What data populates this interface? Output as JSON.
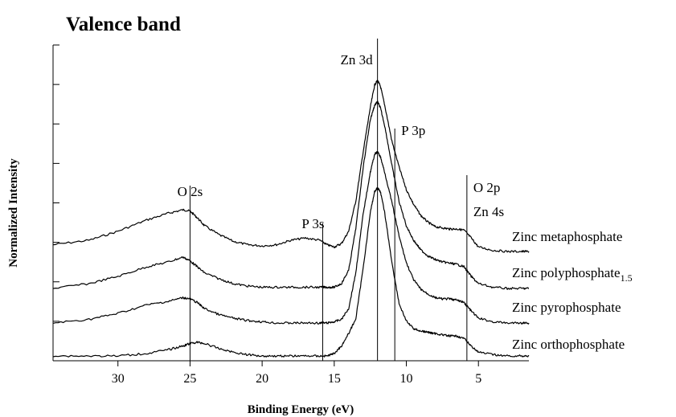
{
  "chart_data": {
    "type": "line",
    "title": "Valence band",
    "xlabel": "Binding Energy (eV)",
    "ylabel": "Normalized Intensity",
    "x_reversed": true,
    "xlim": [
      34.5,
      1.5
    ],
    "xticks": [
      "30",
      "25",
      "20",
      "15",
      "10",
      "5"
    ],
    "y_ticks_count": 9,
    "annotations": [
      {
        "label": "O 2s",
        "x": 25
      },
      {
        "label": "P 3s",
        "x": 15.8
      },
      {
        "label": "Zn 3d",
        "x": 12
      },
      {
        "label": "P 3p",
        "x": 10.8
      },
      {
        "label": "O 2p",
        "x": 5.8
      },
      {
        "label": "Zn 4s",
        "x": 5.8
      }
    ],
    "series": [
      {
        "name": "Zinc metaphosphate",
        "label_sub": "",
        "x": [
          34.5,
          32,
          30,
          28,
          26.5,
          25.5,
          25,
          24.5,
          24,
          23,
          22,
          21,
          20,
          19,
          18,
          17,
          16,
          15.5,
          15,
          14.5,
          14,
          13.5,
          13,
          12.5,
          12.2,
          12,
          11.8,
          11.5,
          11,
          10.5,
          10,
          9.5,
          9,
          8.5,
          8,
          7.5,
          7,
          6.5,
          6,
          5.5,
          5,
          4,
          3,
          2,
          1.5
        ],
        "y": [
          0.06,
          0.1,
          0.18,
          0.28,
          0.34,
          0.37,
          0.36,
          0.3,
          0.23,
          0.15,
          0.09,
          0.06,
          0.05,
          0.06,
          0.1,
          0.12,
          0.1,
          0.06,
          0.04,
          0.07,
          0.18,
          0.45,
          0.88,
          1.28,
          1.48,
          1.52,
          1.47,
          1.3,
          0.98,
          0.75,
          0.55,
          0.42,
          0.32,
          0.26,
          0.22,
          0.21,
          0.2,
          0.2,
          0.19,
          0.12,
          0.04,
          0.01,
          0.0,
          0.0,
          0.0
        ]
      },
      {
        "name": "Zinc polyphosphate",
        "label_sub": "1.5",
        "x": [
          34.5,
          32,
          30,
          28,
          26.5,
          25.5,
          25,
          24.5,
          24,
          23,
          22,
          21,
          20,
          19,
          18,
          17,
          16,
          15.5,
          15,
          14.5,
          14,
          13.5,
          13,
          12.5,
          12.2,
          12,
          11.8,
          11.5,
          11,
          10.5,
          10,
          9.5,
          9,
          8.5,
          8,
          7.5,
          7,
          6.5,
          6,
          5.5,
          5,
          4,
          3,
          2,
          1.5
        ],
        "y": [
          0.0,
          0.04,
          0.1,
          0.18,
          0.22,
          0.26,
          0.23,
          0.18,
          0.13,
          0.08,
          0.04,
          0.02,
          0.01,
          0.01,
          0.01,
          0.01,
          0.01,
          0.01,
          0.01,
          0.04,
          0.15,
          0.5,
          1.0,
          1.4,
          1.52,
          1.55,
          1.5,
          1.35,
          1.02,
          0.72,
          0.52,
          0.4,
          0.32,
          0.27,
          0.24,
          0.22,
          0.21,
          0.2,
          0.18,
          0.1,
          0.04,
          0.01,
          0.0,
          0.0,
          0.0
        ]
      },
      {
        "name": "Zinc pyrophosphate",
        "label_sub": "",
        "x": [
          34.5,
          32,
          30,
          28,
          26.5,
          25.5,
          25,
          24.5,
          24,
          23,
          22,
          21,
          20,
          19,
          18,
          17,
          16,
          15.5,
          15,
          14.5,
          14,
          13.5,
          13,
          12.5,
          12.2,
          12,
          11.8,
          11.5,
          11,
          10.5,
          10,
          9.5,
          9,
          8.5,
          8,
          7.5,
          7,
          6.5,
          6,
          5.5,
          5,
          4,
          3,
          2,
          1.5
        ],
        "y": [
          0.0,
          0.03,
          0.08,
          0.15,
          0.18,
          0.21,
          0.2,
          0.17,
          0.12,
          0.07,
          0.04,
          0.02,
          0.01,
          0.0,
          0.0,
          0.0,
          0.0,
          0.0,
          0.01,
          0.03,
          0.12,
          0.42,
          0.9,
          1.25,
          1.4,
          1.42,
          1.38,
          1.25,
          1.0,
          0.72,
          0.5,
          0.36,
          0.28,
          0.24,
          0.21,
          0.2,
          0.2,
          0.19,
          0.17,
          0.1,
          0.04,
          0.01,
          0.0,
          0.0,
          0.0
        ]
      },
      {
        "name": "Zinc orthophosphate",
        "label_sub": "",
        "x": [
          34.5,
          32,
          30,
          28,
          26.5,
          25.5,
          25,
          24.5,
          24,
          23,
          22,
          21,
          20,
          19,
          18,
          17,
          16,
          15.5,
          15,
          14.5,
          14,
          13.5,
          13,
          12.5,
          12.2,
          12,
          11.8,
          11.5,
          11,
          10.5,
          10,
          9.5,
          9,
          8.5,
          8,
          7.5,
          7,
          6.5,
          6,
          5.5,
          5,
          4,
          3,
          2,
          1.5
        ],
        "y": [
          0.0,
          0.0,
          0.0,
          0.02,
          0.05,
          0.08,
          0.1,
          0.11,
          0.1,
          0.06,
          0.03,
          0.01,
          0.0,
          0.0,
          0.0,
          0.0,
          0.0,
          0.0,
          0.02,
          0.08,
          0.18,
          0.3,
          0.7,
          1.15,
          1.32,
          1.35,
          1.32,
          1.15,
          0.75,
          0.42,
          0.28,
          0.22,
          0.2,
          0.19,
          0.18,
          0.17,
          0.16,
          0.16,
          0.14,
          0.08,
          0.03,
          0.01,
          0.0,
          0.0,
          0.0
        ]
      }
    ]
  }
}
